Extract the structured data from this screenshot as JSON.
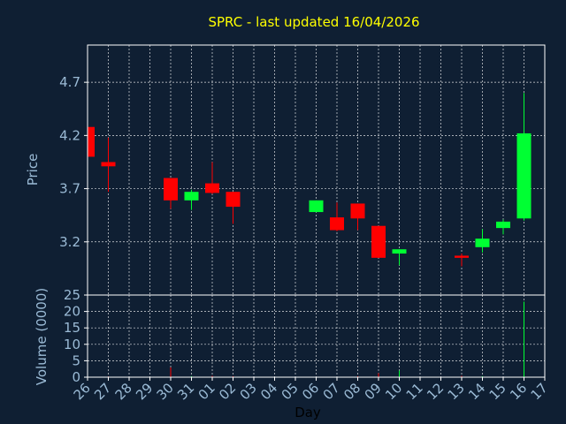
{
  "chart_data": {
    "title": "SPRC - last updated 16/04/2026",
    "xlabel": "Day",
    "x_ticks": [
      "26",
      "27",
      "28",
      "29",
      "30",
      "31",
      "01",
      "02",
      "03",
      "04",
      "05",
      "06",
      "07",
      "08",
      "09",
      "10",
      "11",
      "12",
      "13",
      "14",
      "15",
      "16",
      "17"
    ],
    "colors": {
      "background": "#0f1f33",
      "up": "#00ff33",
      "down": "#ff0000",
      "axis": "#ffffff",
      "tick_text": "#9bbbd6",
      "title": "#ffff00"
    },
    "price": {
      "type": "candlestick",
      "ylabel": "Price",
      "ylim": [
        2.7,
        5.05
      ],
      "yticks": [
        3.2,
        3.7,
        4.2,
        4.7
      ],
      "ytick_labels": [
        "3.2",
        "3.7",
        "4.2",
        "4.7"
      ],
      "grid": true,
      "candles": [
        {
          "day": "26",
          "open": 4.28,
          "high": 4.28,
          "low": 4.0,
          "close": 4.0
        },
        {
          "day": "27",
          "open": 3.95,
          "high": 4.18,
          "low": 3.67,
          "close": 3.91
        },
        {
          "day": "30",
          "open": 3.8,
          "high": 3.8,
          "low": 3.51,
          "close": 3.59
        },
        {
          "day": "31",
          "open": 3.59,
          "high": 3.69,
          "low": 3.5,
          "close": 3.67
        },
        {
          "day": "01",
          "open": 3.75,
          "high": 3.95,
          "low": 3.65,
          "close": 3.66
        },
        {
          "day": "02",
          "open": 3.67,
          "high": 3.67,
          "low": 3.37,
          "close": 3.53
        },
        {
          "day": "06",
          "open": 3.48,
          "high": 3.59,
          "low": 3.48,
          "close": 3.59
        },
        {
          "day": "07",
          "open": 3.43,
          "high": 3.57,
          "low": 3.3,
          "close": 3.31
        },
        {
          "day": "08",
          "open": 3.56,
          "high": 3.56,
          "low": 3.31,
          "close": 3.42
        },
        {
          "day": "09",
          "open": 3.35,
          "high": 3.35,
          "low": 3.05,
          "close": 3.05
        },
        {
          "day": "10",
          "open": 3.09,
          "high": 3.13,
          "low": 2.98,
          "close": 3.13
        },
        {
          "day": "13",
          "open": 3.07,
          "high": 3.09,
          "low": 2.97,
          "close": 3.05
        },
        {
          "day": "14",
          "open": 3.15,
          "high": 3.32,
          "low": 3.1,
          "close": 3.23
        },
        {
          "day": "15",
          "open": 3.33,
          "high": 3.41,
          "low": 3.27,
          "close": 3.39
        },
        {
          "day": "16",
          "open": 3.42,
          "high": 4.6,
          "low": 3.4,
          "close": 4.22
        }
      ]
    },
    "volume": {
      "type": "bar",
      "ylabel": "Volume (0000)",
      "ylim": [
        0,
        25
      ],
      "yticks": [
        0,
        5,
        10,
        15,
        20,
        25
      ],
      "ytick_labels": [
        "0",
        "5",
        "10",
        "15",
        "20",
        "25"
      ],
      "grid": true,
      "bars": [
        {
          "day": "27",
          "value": 0.2,
          "dir": "down"
        },
        {
          "day": "30",
          "value": 3.0,
          "dir": "down"
        },
        {
          "day": "31",
          "value": 0.3,
          "dir": "up"
        },
        {
          "day": "01",
          "value": 0.4,
          "dir": "down"
        },
        {
          "day": "02",
          "value": 0.3,
          "dir": "down"
        },
        {
          "day": "08",
          "value": 0.3,
          "dir": "down"
        },
        {
          "day": "09",
          "value": 1.2,
          "dir": "down"
        },
        {
          "day": "10",
          "value": 2.0,
          "dir": "up"
        },
        {
          "day": "13",
          "value": 0.4,
          "dir": "down"
        },
        {
          "day": "14",
          "value": 0.3,
          "dir": "up"
        },
        {
          "day": "16",
          "value": 23.0,
          "dir": "up"
        }
      ]
    }
  }
}
